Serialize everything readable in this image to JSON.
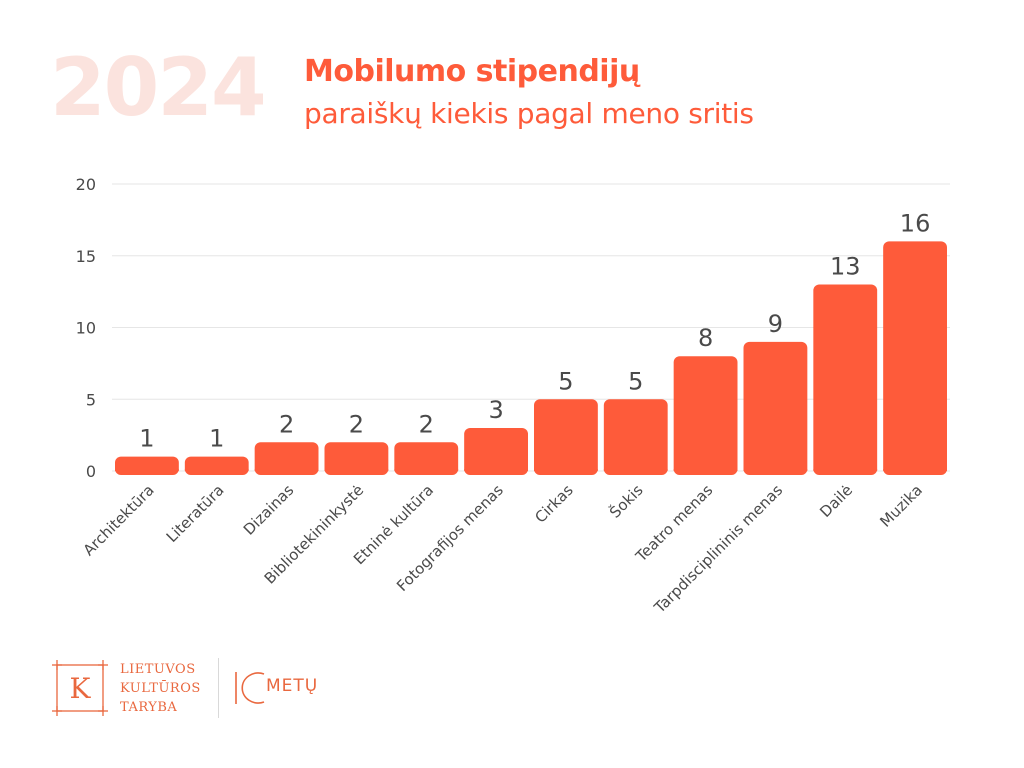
{
  "header": {
    "year": "2024",
    "title": "Mobilumo stipendijų",
    "subtitle": "paraiškų kiekis pagal meno sritis"
  },
  "colors": {
    "bar": "#fe5b3a",
    "year": "#fbe3de",
    "grid": "#e6e6e6",
    "label": "#4a4a4a"
  },
  "chart_data": {
    "type": "bar",
    "title": "",
    "xlabel": "",
    "ylabel": "",
    "ylim": [
      0,
      20
    ],
    "yticks": [
      0,
      5,
      10,
      15,
      20
    ],
    "grid": true,
    "categories": [
      "Architektūra",
      "Literatūra",
      "Dizainas",
      "Bibliotekininkystė",
      "Etninė kultūra",
      "Fotografijos menas",
      "Cirkas",
      "Šokis",
      "Teatro menas",
      "Tarpdisciplininis menas",
      "Dailė",
      "Muzika"
    ],
    "values": [
      1,
      1,
      2,
      2,
      2,
      3,
      5,
      5,
      8,
      9,
      13,
      16
    ]
  },
  "logo": {
    "letter": "K",
    "lines": [
      "LIETUVOS",
      "KULTŪROS",
      "TARYBA"
    ],
    "anniversary_number": "10",
    "anniversary_word": "METŲ"
  }
}
